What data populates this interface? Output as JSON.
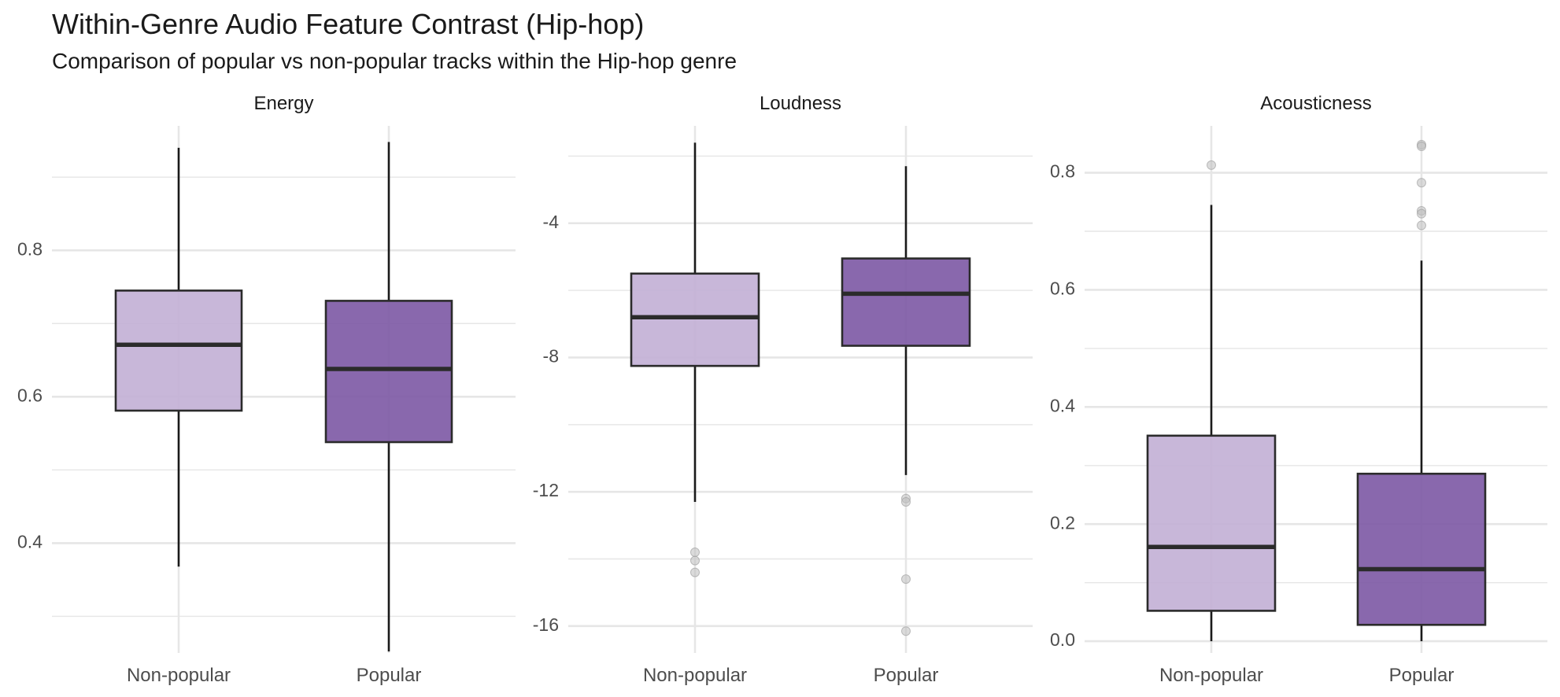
{
  "title": "Within-Genre Audio Feature Contrast (Hip-hop)",
  "subtitle": "Comparison of popular vs non-popular tracks within the Hip-hop genre",
  "colors": {
    "non_popular_fill": "#c3b1d6",
    "popular_fill": "#7f5ba6",
    "box_stroke": "#2b2b2b",
    "grid": "#e6e6e6",
    "outlier": "#bdbdbd"
  },
  "chart_data": {
    "type": "boxplot",
    "categories": [
      "Non-popular",
      "Popular"
    ],
    "panels": [
      {
        "title": "Energy",
        "ylim": [
          0.25,
          0.97
        ],
        "yticks": [
          0.4,
          0.6,
          0.8
        ],
        "ytick_labels": [
          "0.4",
          "0.6",
          "0.8"
        ],
        "minor_grid": [
          0.3,
          0.5,
          0.7,
          0.9
        ],
        "boxes": [
          {
            "category": "Non-popular",
            "whisker_low": 0.368,
            "q1": 0.581,
            "median": 0.671,
            "q3": 0.745,
            "whisker_high": 0.94,
            "outliers": []
          },
          {
            "category": "Popular",
            "whisker_low": 0.252,
            "q1": 0.538,
            "median": 0.638,
            "q3": 0.731,
            "whisker_high": 0.948,
            "outliers": []
          }
        ]
      },
      {
        "title": "Loudness",
        "ylim": [
          -16.8,
          -1.1
        ],
        "yticks": [
          -16,
          -12,
          -8,
          -4
        ],
        "ytick_labels": [
          "-16",
          "-12",
          "-8",
          "-4"
        ],
        "minor_grid": [
          -14,
          -10,
          -6,
          -2
        ],
        "boxes": [
          {
            "category": "Non-popular",
            "whisker_low": -12.3,
            "q1": -8.25,
            "median": -6.8,
            "q3": -5.5,
            "whisker_high": -1.6,
            "outliers": [
              -13.8,
              -14.05,
              -14.4
            ]
          },
          {
            "category": "Popular",
            "whisker_low": -11.5,
            "q1": -7.65,
            "median": -6.1,
            "q3": -5.05,
            "whisker_high": -2.3,
            "outliers": [
              -12.2,
              -12.3,
              -14.6,
              -16.15
            ]
          }
        ]
      },
      {
        "title": "Acousticness",
        "ylim": [
          -0.02,
          0.88
        ],
        "yticks": [
          0.0,
          0.2,
          0.4,
          0.6,
          0.8
        ],
        "ytick_labels": [
          "0.0",
          "0.2",
          "0.4",
          "0.6",
          "0.8"
        ],
        "minor_grid": [
          0.1,
          0.3,
          0.5,
          0.7
        ],
        "boxes": [
          {
            "category": "Non-popular",
            "whisker_low": 0.0,
            "q1": 0.052,
            "median": 0.161,
            "q3": 0.351,
            "whisker_high": 0.745,
            "outliers": [
              0.813
            ]
          },
          {
            "category": "Popular",
            "whisker_low": 0.0,
            "q1": 0.028,
            "median": 0.123,
            "q3": 0.286,
            "whisker_high": 0.65,
            "outliers": [
              0.848,
              0.845,
              0.783,
              0.735,
              0.73,
              0.71
            ]
          }
        ]
      }
    ]
  }
}
